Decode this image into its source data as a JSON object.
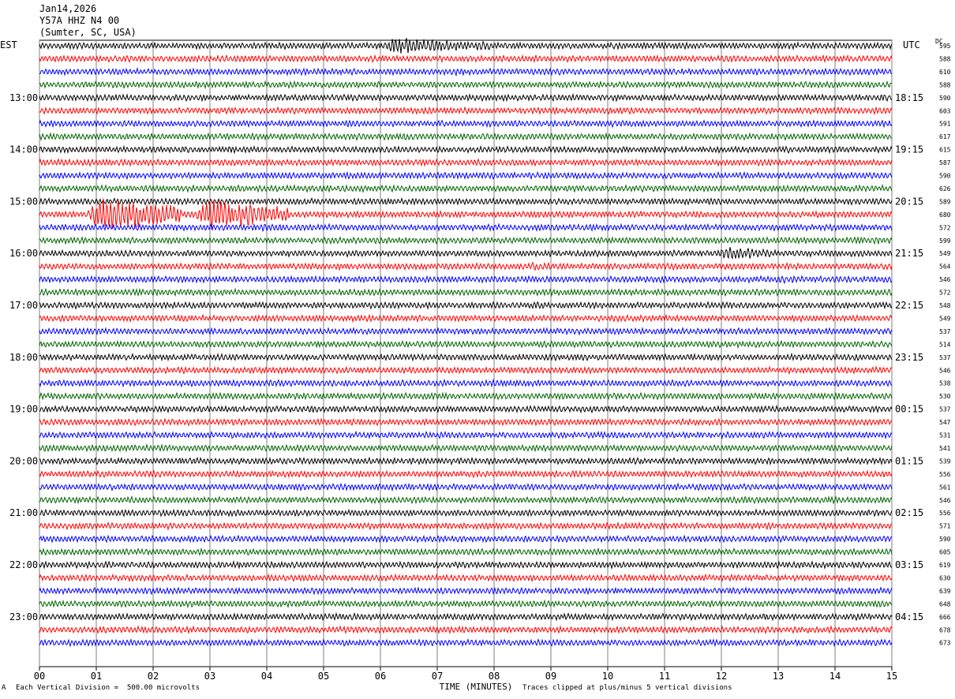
{
  "header": {
    "date": "Jan14,2026",
    "station": "Y57A HHZ N4 00",
    "location": "(Sumter, SC, USA)"
  },
  "left_tz": "EST",
  "right_tz": "UTC",
  "dc_label": "DC",
  "footer": {
    "scale_note": "Each Vertical Division =  500.00 microvolts",
    "clip_note": "Traces clipped at plus/minus 5 vertical divisions",
    "corner_mark": "A"
  },
  "chart_data": {
    "type": "line",
    "title": "",
    "xlabel": "TIME (MINUTES)",
    "ylabel": "",
    "xlim": [
      0,
      15
    ],
    "x_ticks": [
      "00",
      "01",
      "02",
      "03",
      "04",
      "05",
      "06",
      "07",
      "08",
      "09",
      "10",
      "11",
      "12",
      "13",
      "14",
      "15"
    ],
    "trace_colors": [
      "#000000",
      "#ff0000",
      "#0000ff",
      "#006400"
    ],
    "left_hour_labels": [
      "13:00",
      "14:00",
      "15:00",
      "16:00",
      "17:00",
      "18:00",
      "19:00",
      "20:00",
      "21:00",
      "22:00",
      "23:00"
    ],
    "right_hour_labels": [
      "18:15",
      "19:15",
      "20:15",
      "21:15",
      "22:15",
      "23:15",
      "00:15",
      "01:15",
      "02:15",
      "03:15",
      "04:15"
    ],
    "dc_offsets": [
      "595",
      "588",
      "610",
      "588",
      "590",
      "603",
      "591",
      "617",
      "615",
      "587",
      "590",
      "626",
      "589",
      "680",
      "572",
      "599",
      "549",
      "564",
      "546",
      "572",
      "548",
      "549",
      "537",
      "514",
      "537",
      "546",
      "538",
      "530",
      "537",
      "547",
      "531",
      "541",
      "539",
      "556",
      "561",
      "546",
      "556",
      "571",
      "590",
      "605",
      "619",
      "630",
      "639",
      "648",
      "666",
      "678",
      "673"
    ],
    "events": [
      {
        "row": 0,
        "start_min": 5.9,
        "end_min": 8.0,
        "amp": 2.8
      },
      {
        "row": 2,
        "start_min": 7.2,
        "end_min": 7.8,
        "amp": 1.3
      },
      {
        "row": 3,
        "start_min": 13.2,
        "end_min": 13.6,
        "amp": 1.1
      },
      {
        "row": 4,
        "start_min": 8.2,
        "end_min": 8.5,
        "amp": 1.1
      },
      {
        "row": 5,
        "start_min": 6.8,
        "end_min": 7.1,
        "amp": 1.1
      },
      {
        "row": 5,
        "start_min": 9.0,
        "end_min": 9.4,
        "amp": 1.1
      },
      {
        "row": 6,
        "start_min": 10.2,
        "end_min": 10.6,
        "amp": 1.1
      },
      {
        "row": 7,
        "start_min": 6.2,
        "end_min": 7.1,
        "amp": 1.2
      },
      {
        "row": 13,
        "start_min": 0.8,
        "end_min": 2.5,
        "amp": 6.5
      },
      {
        "row": 13,
        "start_min": 2.7,
        "end_min": 4.4,
        "amp": 5.5
      },
      {
        "row": 14,
        "start_min": 3.8,
        "end_min": 4.5,
        "amp": 1.6
      },
      {
        "row": 15,
        "start_min": 5.6,
        "end_min": 7.0,
        "amp": 1.1
      },
      {
        "row": 16,
        "start_min": 11.9,
        "end_min": 12.9,
        "amp": 2.6
      },
      {
        "row": 17,
        "start_min": 8.6,
        "end_min": 9.2,
        "amp": 1.5
      },
      {
        "row": 17,
        "start_min": 12.0,
        "end_min": 13.0,
        "amp": 1.3
      },
      {
        "row": 18,
        "start_min": 12.9,
        "end_min": 13.5,
        "amp": 1.6
      },
      {
        "row": 20,
        "start_min": 8.6,
        "end_min": 9.2,
        "amp": 1.3
      },
      {
        "row": 25,
        "start_min": 14.6,
        "end_min": 15.0,
        "amp": 1.2
      }
    ]
  }
}
